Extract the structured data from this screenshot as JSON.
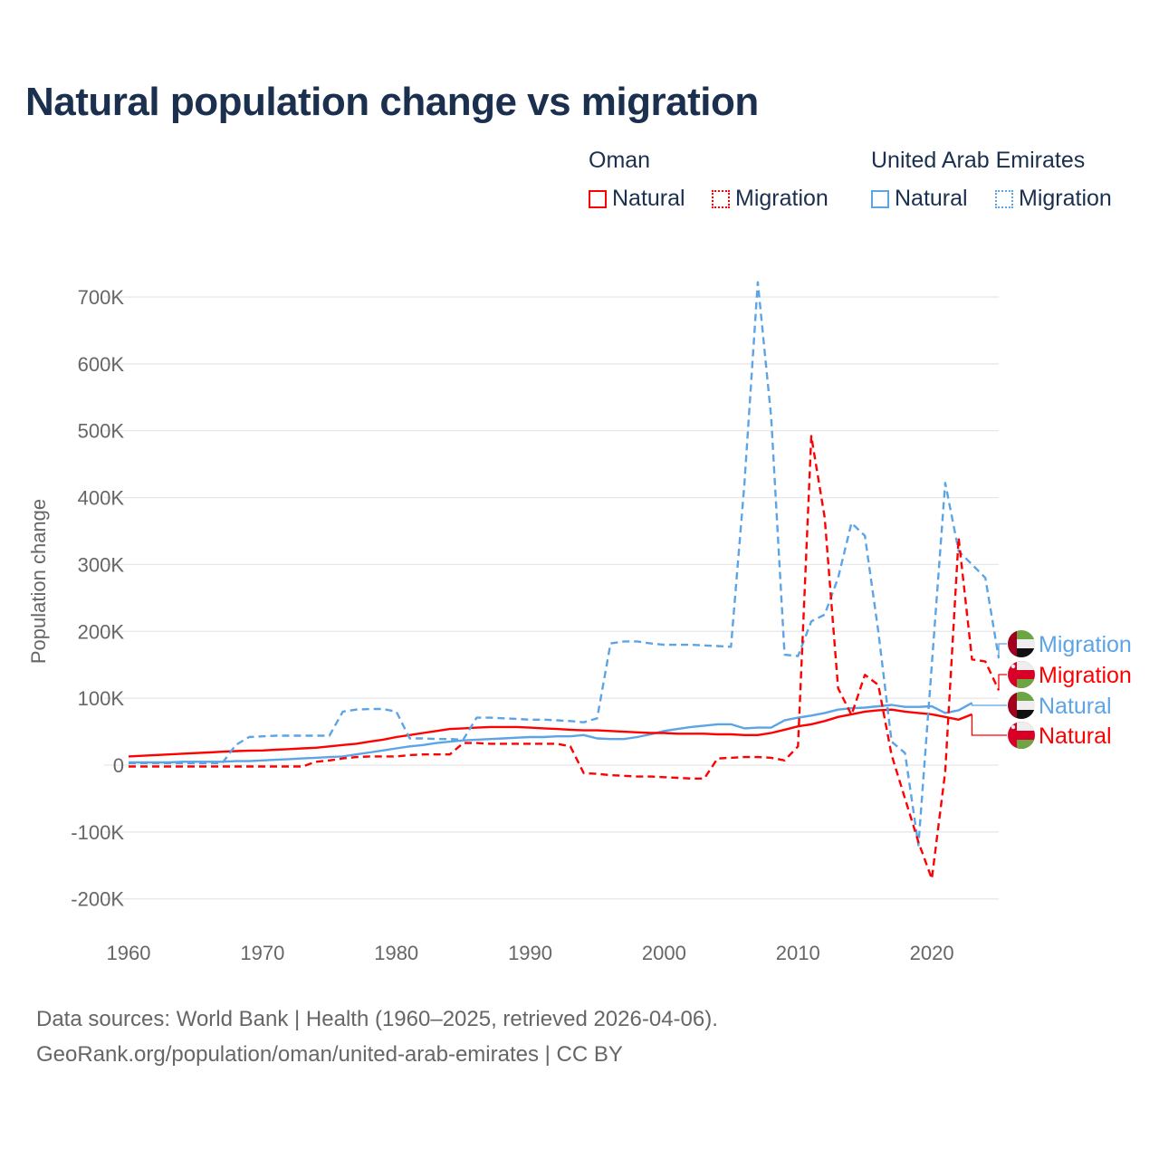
{
  "title": "Natural population change vs migration",
  "legend": {
    "groups": [
      {
        "name": "Oman",
        "items": [
          "Natural",
          "Migration"
        ],
        "color": "#ff0000"
      },
      {
        "name": "United Arab Emirates",
        "items": [
          "Natural",
          "Migration"
        ],
        "color": "#5ba4e6"
      }
    ]
  },
  "footer": {
    "line1": "Data sources: World Bank | Health (1960–2025, retrieved 2026-04-06).",
    "line2": "GeoRank.org/population/oman/united-arab-emirates | CC BY"
  },
  "chart_data": {
    "type": "line",
    "title": "Natural population change vs migration",
    "xlabel": "",
    "ylabel": "Population change",
    "xlim": [
      1960,
      2025
    ],
    "ylim": [
      -200000,
      700000
    ],
    "x_ticks": [
      "1960",
      "1970",
      "1980",
      "1990",
      "2000",
      "2010",
      "2020"
    ],
    "y_ticks": [
      {
        "v": -200000,
        "label": "-200K"
      },
      {
        "v": -100000,
        "label": "-100K"
      },
      {
        "v": 0,
        "label": "0"
      },
      {
        "v": 100000,
        "label": "100K"
      },
      {
        "v": 200000,
        "label": "200K"
      },
      {
        "v": 300000,
        "label": "300K"
      },
      {
        "v": 400000,
        "label": "400K"
      },
      {
        "v": 500000,
        "label": "500K"
      },
      {
        "v": 600000,
        "label": "600K"
      },
      {
        "v": 700000,
        "label": "700K"
      }
    ],
    "grid": true,
    "legend_position": "top-right",
    "start_year": 1960,
    "units": "thousands",
    "series": [
      {
        "name": "United Arab Emirates Migration",
        "end_label": "Migration",
        "country": "uae",
        "color": "#5ba4e6",
        "dash": "dashed",
        "values": [
          3,
          3,
          3,
          3,
          3,
          3,
          3,
          3,
          30,
          42,
          43,
          44,
          44,
          44,
          44,
          44,
          80,
          83,
          84,
          84,
          80,
          40,
          40,
          39,
          39,
          38,
          71,
          71,
          70,
          69,
          68,
          68,
          67,
          66,
          64,
          70,
          182,
          185,
          185,
          182,
          180,
          180,
          180,
          179,
          178,
          177,
          420,
          722,
          520,
          165,
          163,
          215,
          225,
          280,
          362,
          343,
          200,
          35,
          18,
          -120,
          150,
          422,
          320,
          300,
          280,
          160
        ]
      },
      {
        "name": "Oman Migration",
        "end_label": "Migration",
        "country": "oman",
        "color": "#ff0000",
        "dash": "dashed",
        "values": [
          -2,
          -2,
          -2,
          -2,
          -2,
          -2,
          -2,
          -2,
          -2,
          -2,
          -2,
          -2,
          -2,
          -2,
          5,
          7,
          10,
          12,
          13,
          13,
          13,
          15,
          16,
          16,
          16,
          33,
          33,
          32,
          32,
          32,
          32,
          32,
          32,
          28,
          -12,
          -13,
          -15,
          -16,
          -17,
          -17,
          -18,
          -19,
          -20,
          -20,
          10,
          11,
          12,
          12,
          11,
          7,
          28,
          492,
          370,
          115,
          75,
          135,
          120,
          15,
          -50,
          -115,
          -170,
          -10,
          340,
          158,
          155,
          112
        ]
      },
      {
        "name": "United Arab Emirates Natural",
        "end_label": "Natural",
        "country": "uae",
        "color": "#5ba4e6",
        "dash": "solid",
        "values": [
          4,
          4,
          4,
          4,
          5,
          5,
          5,
          5,
          6,
          6,
          7,
          8,
          9,
          10,
          11,
          12,
          13,
          16,
          19,
          22,
          25,
          28,
          30,
          33,
          35,
          37,
          38,
          39,
          40,
          41,
          42,
          42,
          43,
          43,
          45,
          40,
          39,
          39,
          42,
          46,
          51,
          54,
          57,
          59,
          61,
          61,
          55,
          56,
          56,
          67,
          71,
          74,
          78,
          83,
          85,
          86,
          88,
          90,
          87,
          87,
          88,
          78,
          82,
          93
        ]
      },
      {
        "name": "Oman Natural",
        "end_label": "Natural",
        "country": "oman",
        "color": "#ff0000",
        "dash": "solid",
        "values": [
          13,
          14,
          15,
          16,
          17,
          18,
          19,
          20,
          21,
          21.5,
          22,
          23,
          24,
          25,
          26,
          28,
          30,
          32,
          35,
          38,
          42,
          45,
          48,
          51,
          54,
          55,
          56,
          57,
          57,
          57,
          56,
          55,
          54,
          53,
          52,
          52,
          51,
          50,
          49,
          48,
          48,
          47,
          47,
          47,
          46,
          46,
          45,
          45,
          48,
          53,
          58,
          61,
          66,
          72,
          76,
          80,
          82,
          83,
          80,
          78,
          76,
          72,
          68,
          76
        ]
      }
    ]
  }
}
